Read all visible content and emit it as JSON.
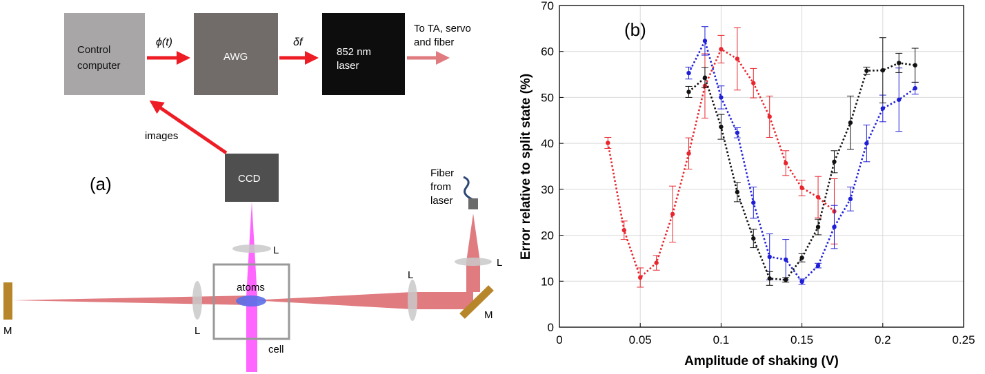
{
  "diagram": {
    "panel_label": "(a)",
    "boxes": {
      "control_line1": "Control",
      "control_line2": "computer",
      "awg": "AWG",
      "laser_line1": "852 nm",
      "laser_line2": "laser",
      "ccd": "CCD"
    },
    "arrows": {
      "phi": "ϕ(t)",
      "delta_f": "δf",
      "images": "images",
      "to_ta_line1": "To TA, servo",
      "to_ta_line2": "and fiber"
    },
    "optics": {
      "fiber_line1": "Fiber",
      "fiber_line2": "from",
      "fiber_line3": "laser",
      "lens": "L",
      "mirror": "M",
      "atoms": "atoms",
      "cell": "cell"
    },
    "colors": {
      "red_arrow": "#ee1c25",
      "beam": "#e07b80",
      "pink_beam": "#ff66ff",
      "atoms": "#5b6fe8",
      "mirror": "#b8862a"
    }
  },
  "chart_data": {
    "type": "line",
    "panel_label": "(b)",
    "xlabel": "Amplitude of shaking (V)",
    "ylabel": "Error relative to split state (%)",
    "xlim": [
      0,
      0.25
    ],
    "ylim": [
      0,
      70
    ],
    "xticks": [
      0,
      0.05,
      0.1,
      0.15,
      0.2,
      0.25
    ],
    "xtick_labels": [
      "0",
      "0.05",
      "0.1",
      "0.15",
      "0.2",
      "0.25"
    ],
    "yticks": [
      0,
      10,
      20,
      30,
      40,
      50,
      60,
      70
    ],
    "ytick_labels": [
      "0",
      "10",
      "20",
      "30",
      "40",
      "50",
      "60",
      "70"
    ],
    "grid": true,
    "series": [
      {
        "color": "#e8262e",
        "x": [
          0.03,
          0.04,
          0.05,
          0.06,
          0.07,
          0.08,
          0.09,
          0.1,
          0.11,
          0.12,
          0.13,
          0.14,
          0.15,
          0.16,
          0.17
        ],
        "y": [
          40.1,
          21.1,
          10.8,
          14.0,
          24.6,
          37.8,
          52.5,
          60.5,
          58.4,
          53.1,
          45.8,
          35.7,
          30.3,
          28.3,
          25.2
        ],
        "err": [
          1.2,
          2.0,
          2.1,
          1.6,
          6.1,
          3.4,
          7.0,
          3.0,
          6.8,
          3.2,
          4.5,
          2.7,
          1.7,
          4.5,
          7.1
        ]
      },
      {
        "color": "#1f1fd8",
        "x": [
          0.08,
          0.09,
          0.1,
          0.11,
          0.12,
          0.13,
          0.14,
          0.15,
          0.16,
          0.17,
          0.18,
          0.19,
          0.2,
          0.21,
          0.22
        ],
        "y": [
          55.3,
          62.3,
          50.0,
          42.3,
          27.1,
          15.3,
          14.7,
          9.9,
          13.4,
          21.8,
          27.9,
          40.0,
          47.6,
          49.5,
          52.0
        ],
        "err": [
          1.3,
          3.1,
          2.5,
          1.1,
          3.4,
          5.0,
          4.4,
          0.6,
          0.5,
          4.7,
          2.6,
          4.0,
          2.9,
          6.9,
          1.3
        ]
      },
      {
        "color": "#111111",
        "x": [
          0.08,
          0.09,
          0.1,
          0.11,
          0.12,
          0.13,
          0.14,
          0.15,
          0.16,
          0.17,
          0.18,
          0.19,
          0.2,
          0.21,
          0.22
        ],
        "y": [
          51.2,
          54.3,
          43.6,
          29.4,
          19.3,
          10.6,
          10.3,
          15.1,
          21.8,
          36.0,
          44.5,
          55.8,
          55.9,
          57.5,
          57.0
        ],
        "err": [
          1.2,
          2.2,
          2.7,
          2.1,
          2.0,
          1.5,
          0.5,
          0.9,
          1.7,
          2.4,
          5.8,
          0.8,
          7.1,
          2.1,
          3.7
        ]
      }
    ]
  }
}
